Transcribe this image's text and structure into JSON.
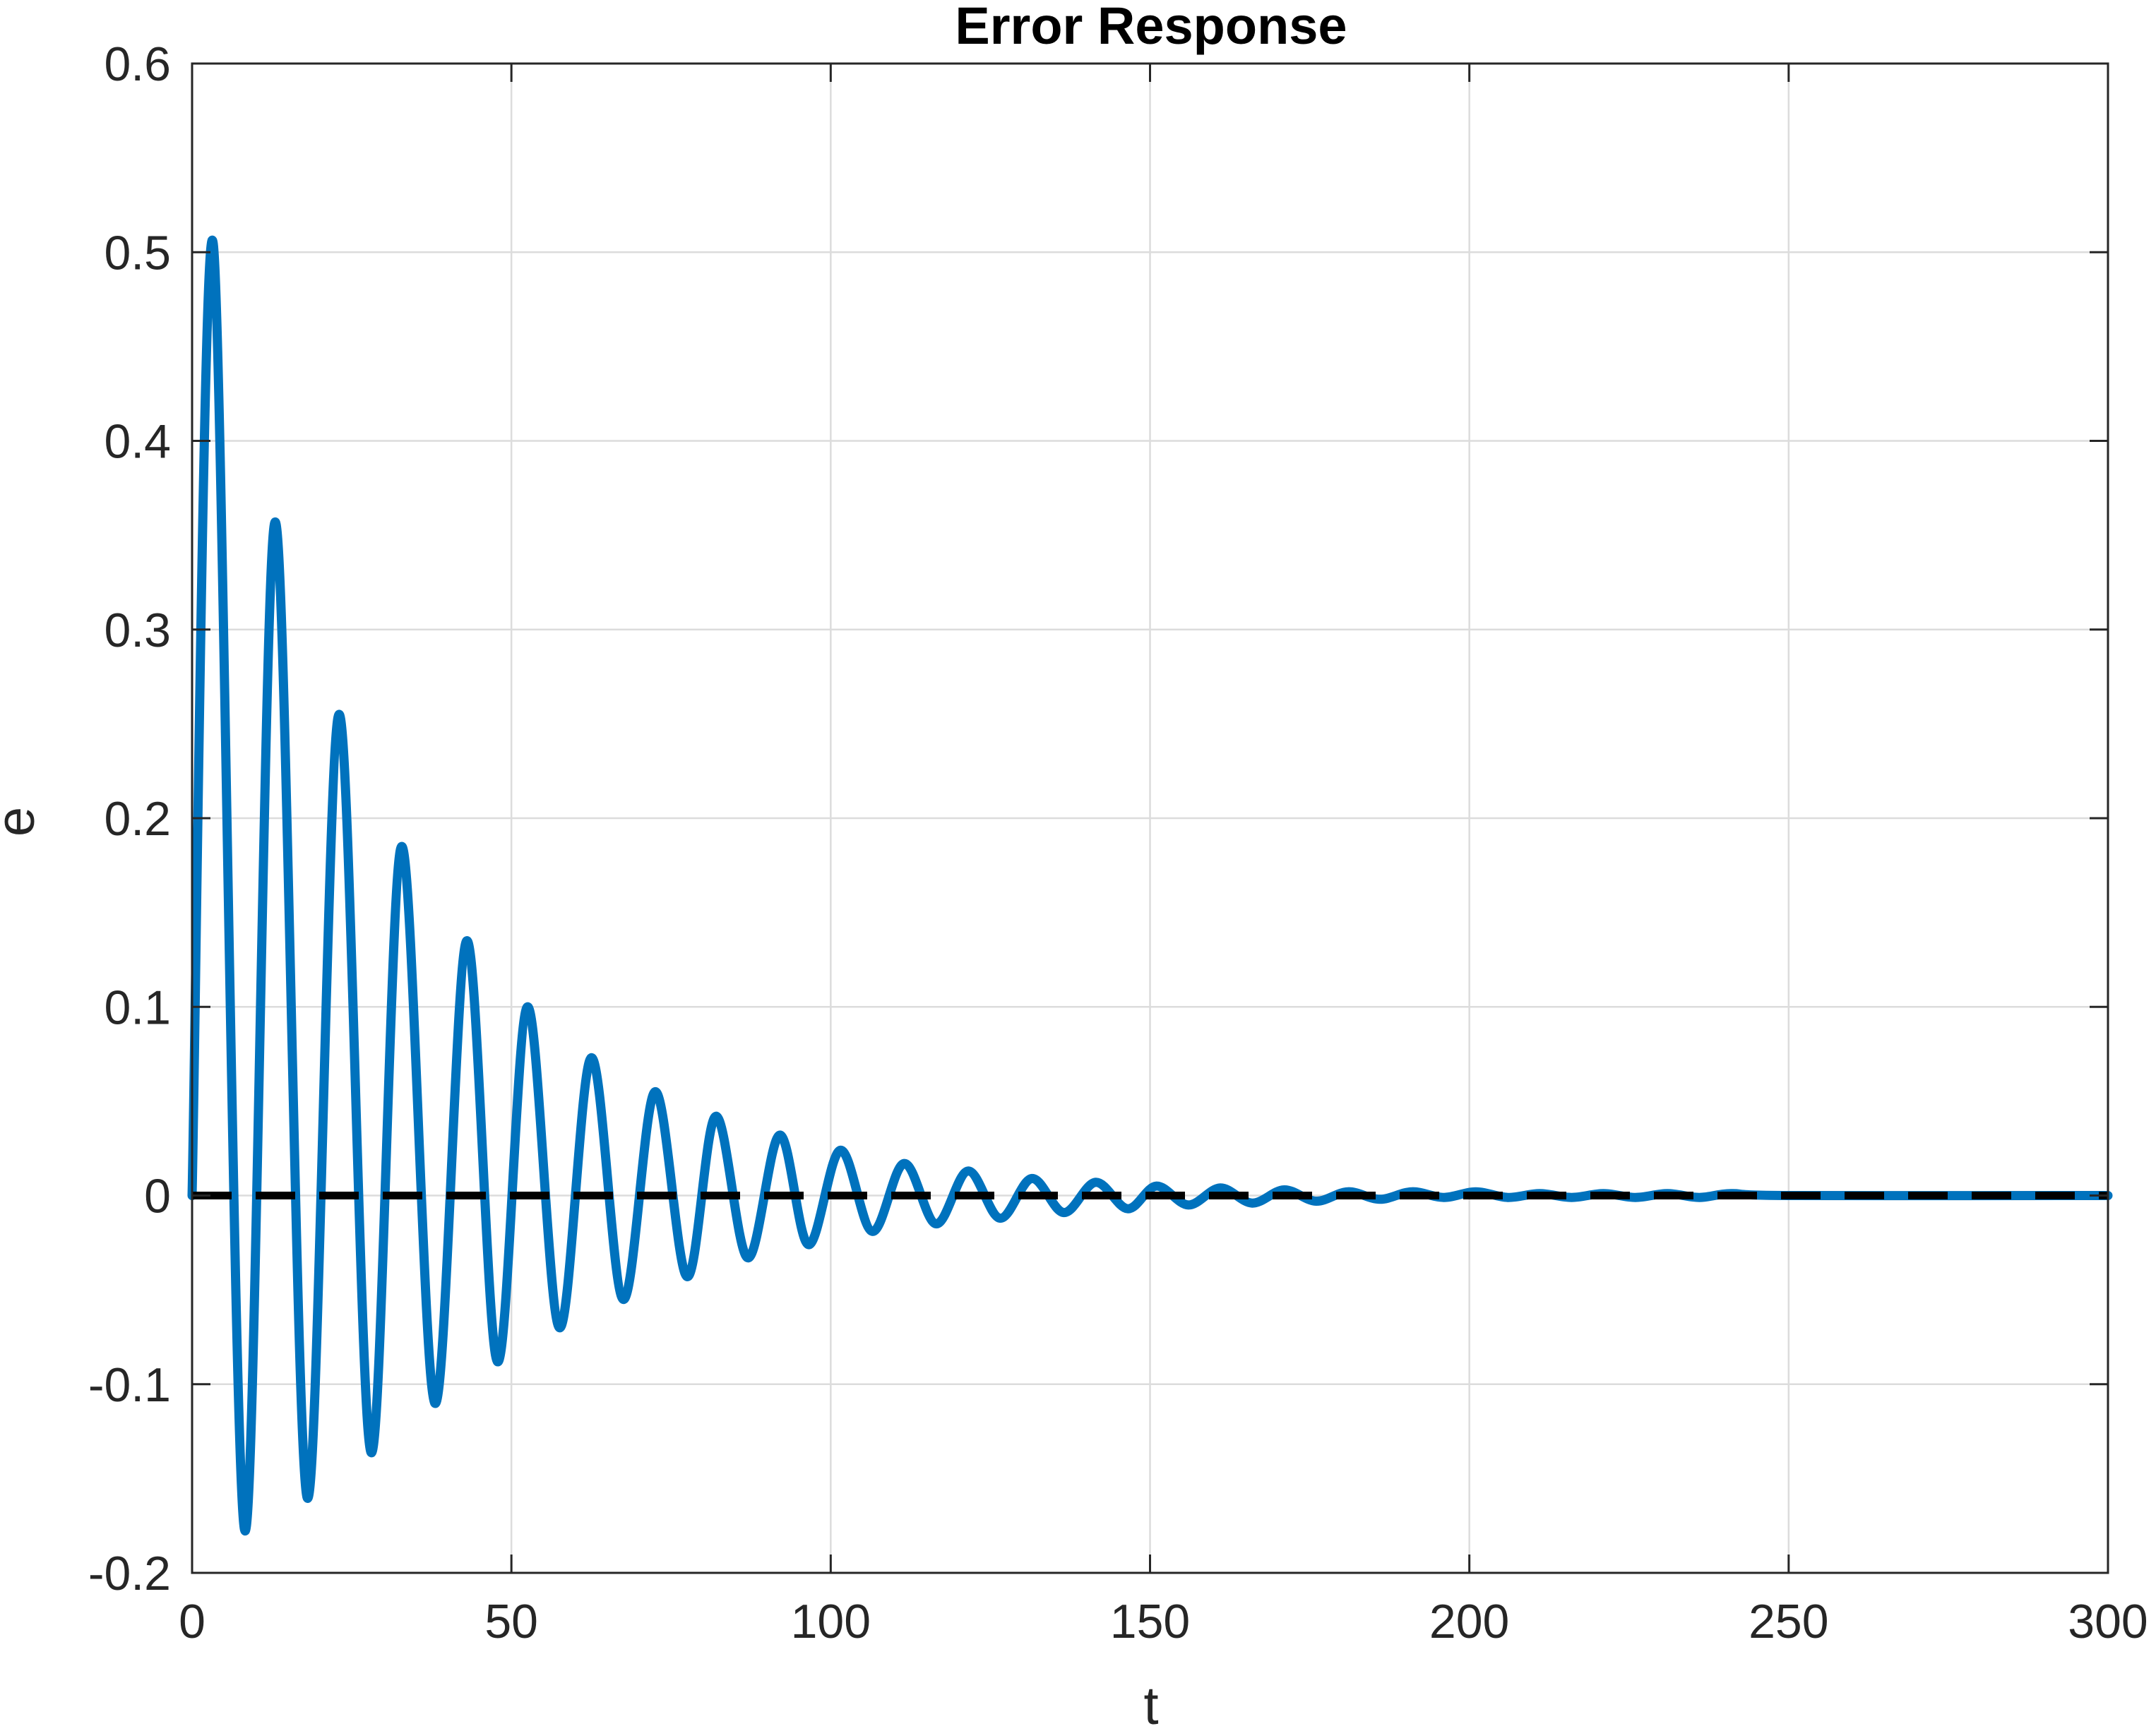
{
  "chart_data": {
    "type": "line",
    "title": "Error Response",
    "xlabel": "t",
    "ylabel": "e",
    "xlim": [
      0,
      300
    ],
    "ylim": [
      -0.2,
      0.6
    ],
    "xticks": [
      0,
      50,
      100,
      150,
      200,
      250,
      300
    ],
    "yticks": [
      -0.2,
      -0.1,
      0,
      0.1,
      0.2,
      0.3,
      0.4,
      0.5,
      0.6
    ],
    "xtick_labels": [
      "0",
      "50",
      "100",
      "150",
      "200",
      "250",
      "300"
    ],
    "ytick_labels": [
      "-0.2",
      "-0.1",
      "0",
      "0.1",
      "0.2",
      "0.3",
      "0.4",
      "0.5",
      "0.6"
    ],
    "grid": true,
    "series": [
      {
        "color": "#0072BD",
        "style": "solid",
        "points": [
          [
            0,
            0
          ],
          [
            3.3,
            0.505
          ],
          [
            8.2,
            -0.177
          ],
          [
            13,
            0.357
          ],
          [
            18,
            -0.16
          ],
          [
            23,
            0.255
          ],
          [
            28,
            -0.136
          ],
          [
            32.8,
            0.185
          ],
          [
            38,
            -0.11
          ],
          [
            43,
            0.135
          ],
          [
            47.8,
            -0.088
          ],
          [
            52.5,
            0.1
          ],
          [
            57.5,
            -0.07
          ],
          [
            62.5,
            0.073
          ],
          [
            67.5,
            -0.055
          ],
          [
            72.5,
            0.055
          ],
          [
            77.5,
            -0.043
          ],
          [
            82,
            0.042
          ],
          [
            87,
            -0.033
          ],
          [
            92,
            0.032
          ],
          [
            96.5,
            -0.026
          ],
          [
            101.5,
            0.024
          ],
          [
            106.5,
            -0.019
          ],
          [
            111.5,
            0.017
          ],
          [
            116.5,
            -0.015
          ],
          [
            121.5,
            0.013
          ],
          [
            126.5,
            -0.012
          ],
          [
            131.5,
            0.009
          ],
          [
            136.5,
            -0.009
          ],
          [
            141.5,
            0.007
          ],
          [
            146.5,
            -0.007
          ],
          [
            151,
            0.005
          ],
          [
            156,
            -0.005
          ],
          [
            161,
            0.004
          ],
          [
            166,
            -0.004
          ],
          [
            171,
            0.003
          ],
          [
            176,
            -0.003
          ],
          [
            181,
            0.002
          ],
          [
            186,
            -0.002
          ],
          [
            191,
            0.002
          ],
          [
            196,
            -0.001
          ],
          [
            201,
            0.002
          ],
          [
            206,
            -0.001
          ],
          [
            211,
            0.001
          ],
          [
            216,
            -0.001
          ],
          [
            221,
            0.001
          ],
          [
            226,
            -0.001
          ],
          [
            231,
            0.001
          ],
          [
            236,
            -0.001
          ],
          [
            241,
            0.001
          ],
          [
            250,
            0
          ],
          [
            300,
            0
          ]
        ]
      },
      {
        "color": "#000000",
        "style": "dashed",
        "points": [
          [
            0,
            0
          ],
          [
            300,
            0
          ]
        ]
      }
    ]
  }
}
